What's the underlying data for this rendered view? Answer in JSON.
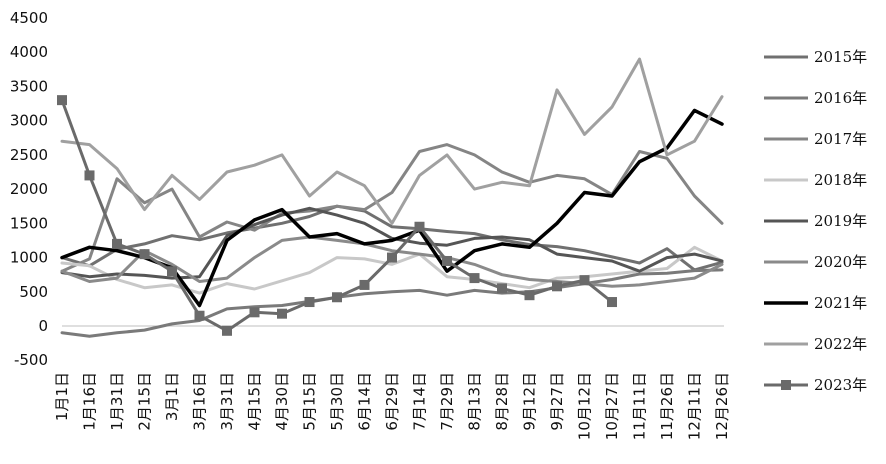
{
  "chart_data": {
    "type": "line",
    "x_labels": [
      "1月1日",
      "1月16日",
      "1月31日",
      "2月15日",
      "3月1日",
      "3月16日",
      "3月31日",
      "4月15日",
      "4月30日",
      "5月15日",
      "5月30日",
      "6月14日",
      "6月29日",
      "7月14日",
      "7月29日",
      "8月13日",
      "8月28日",
      "9月12日",
      "9月27日",
      "10月12日",
      "10月27日",
      "11月11日",
      "11月26日",
      "12月11日",
      "12月26日"
    ],
    "y_ticks": [
      "-500",
      "0",
      "500",
      "1000",
      "1500",
      "2000",
      "2500",
      "3000",
      "3500",
      "4000",
      "4500"
    ],
    "ylim": [
      -500,
      4500
    ],
    "grid": false,
    "legend_position": "right",
    "series": [
      {
        "name": "2015年",
        "color": "#707070",
        "width": 3,
        "values": [
          1000,
          880,
          1120,
          1200,
          1320,
          1260,
          1360,
          1430,
          1500,
          1600,
          1750,
          1680,
          1450,
          1420,
          1380,
          1350,
          1260,
          1190,
          1160,
          1100,
          1010,
          920,
          1130,
          820,
          930
        ]
      },
      {
        "name": "2016年",
        "color": "#7a7a7a",
        "width": 3,
        "values": [
          -100,
          -150,
          -100,
          -60,
          30,
          80,
          250,
          280,
          300,
          360,
          420,
          470,
          500,
          520,
          450,
          520,
          480,
          500,
          560,
          620,
          680,
          760,
          770,
          810,
          820
        ]
      },
      {
        "name": "2017年",
        "color": "#858585",
        "width": 3,
        "values": [
          800,
          980,
          2150,
          1800,
          2000,
          1300,
          1520,
          1400,
          1650,
          1680,
          1750,
          1700,
          1950,
          2550,
          2650,
          2500,
          2250,
          2100,
          2200,
          2150,
          1920,
          2550,
          2450,
          1900,
          1500
        ]
      },
      {
        "name": "2018年",
        "color": "#c8c8c8",
        "width": 3,
        "values": [
          920,
          880,
          680,
          560,
          600,
          480,
          620,
          540,
          660,
          780,
          1000,
          980,
          900,
          1050,
          720,
          680,
          620,
          560,
          700,
          720,
          760,
          800,
          840,
          1150,
          950
        ]
      },
      {
        "name": "2019年",
        "color": "#555555",
        "width": 3,
        "values": [
          780,
          720,
          760,
          740,
          700,
          720,
          1320,
          1480,
          1620,
          1720,
          1620,
          1500,
          1280,
          1210,
          1180,
          1280,
          1300,
          1260,
          1050,
          1000,
          950,
          800,
          1000,
          1050,
          950
        ]
      },
      {
        "name": "2020年",
        "color": "#8a8a8a",
        "width": 3,
        "values": [
          800,
          650,
          700,
          1100,
          900,
          650,
          700,
          1000,
          1250,
          1300,
          1250,
          1200,
          1100,
          1050,
          1000,
          900,
          750,
          680,
          650,
          620,
          580,
          600,
          650,
          700,
          900
        ]
      },
      {
        "name": "2021年",
        "color": "#000000",
        "width": 3.5,
        "values": [
          1000,
          1150,
          1100,
          1000,
          850,
          300,
          1250,
          1550,
          1700,
          1300,
          1350,
          1200,
          1250,
          1400,
          800,
          1100,
          1200,
          1150,
          1500,
          1950,
          1900,
          2400,
          2600,
          3150,
          2950
        ]
      },
      {
        "name": "2022年",
        "color": "#a0a0a0",
        "width": 3,
        "values": [
          2700,
          2650,
          2300,
          1700,
          2200,
          1850,
          2250,
          2350,
          2500,
          1900,
          2250,
          2050,
          1500,
          2200,
          2500,
          2000,
          2100,
          2050,
          3450,
          2800,
          3200,
          3900,
          2500,
          2700,
          3350
        ]
      },
      {
        "name": "2023年",
        "color": "#6a6a6a",
        "width": 3,
        "values": [
          3300,
          2200,
          1200,
          1050,
          800,
          150,
          -70,
          200,
          180,
          350,
          420,
          600,
          1000,
          1450,
          950,
          700,
          550,
          450,
          580,
          670,
          350
        ]
      }
    ]
  }
}
